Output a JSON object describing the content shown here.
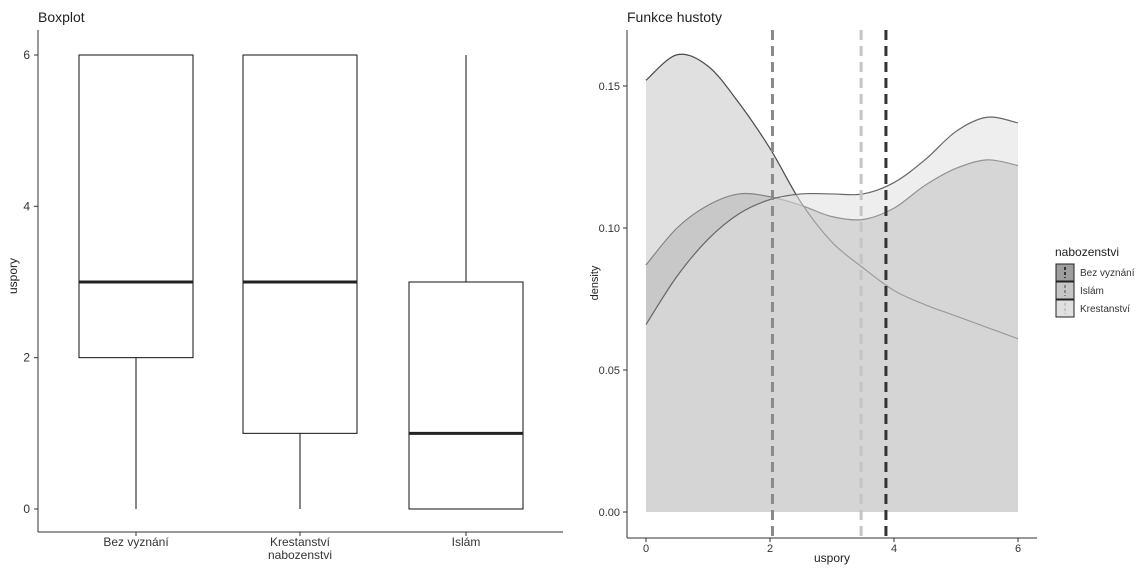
{
  "chart_data": [
    {
      "type": "box",
      "title": "Boxplot",
      "ylabel": "uspory",
      "xlabel": "",
      "categories": [
        "Bez vyznání",
        "Krestanství\nnabozenstvi",
        "Islám"
      ],
      "ylim": [
        0,
        6
      ],
      "yticks": [
        0,
        2,
        4,
        6
      ],
      "boxes": [
        {
          "category": "Bez vyznání",
          "min": 0,
          "q1": 2,
          "median": 3,
          "q3": 6,
          "max": 6
        },
        {
          "category": "Krestanství nabozenstvi",
          "min": 0,
          "q1": 1,
          "median": 3,
          "q3": 6,
          "max": 6
        },
        {
          "category": "Islám",
          "min": 0,
          "q1": 0,
          "median": 1,
          "q3": 3,
          "max": 6
        }
      ],
      "grid": false
    },
    {
      "type": "area",
      "title": "Funkce hustoty",
      "xlabel": "uspory",
      "ylabel": "density",
      "xlim": [
        0,
        6
      ],
      "ylim": [
        0,
        0.165
      ],
      "xticks": [
        0,
        2,
        4,
        6
      ],
      "yticks": [
        0.0,
        0.05,
        0.1,
        0.15
      ],
      "ytick_labels": [
        "0.00",
        "0.05",
        "0.10",
        "0.15"
      ],
      "legend_title": "nabozenstvi",
      "legend_position": "right",
      "series": [
        {
          "name": "Bez vyznání",
          "color": "#9e9e9e",
          "line_color": "#333333",
          "x": [
            0,
            0.5,
            1,
            1.5,
            2,
            2.5,
            3,
            3.5,
            4,
            4.5,
            5,
            5.5,
            6
          ],
          "y": [
            0.087,
            0.1,
            0.108,
            0.112,
            0.111,
            0.108,
            0.104,
            0.103,
            0.107,
            0.115,
            0.121,
            0.124,
            0.122
          ],
          "mean": 3.87
        },
        {
          "name": "Islám",
          "color": "#c6c6c6",
          "line_color": "#4a4a4a",
          "x": [
            0,
            0.5,
            1,
            1.5,
            2,
            2.5,
            3,
            3.5,
            4,
            4.5,
            5,
            5.5,
            6
          ],
          "y": [
            0.152,
            0.161,
            0.157,
            0.144,
            0.128,
            0.109,
            0.095,
            0.086,
            0.078,
            0.073,
            0.069,
            0.065,
            0.061
          ],
          "mean": 2.04
        },
        {
          "name": "Krestanství",
          "color": "#e0e0e0",
          "line_color": "#666666",
          "x": [
            0,
            0.5,
            1,
            1.5,
            2,
            2.5,
            3,
            3.5,
            4,
            4.5,
            5,
            5.5,
            6
          ],
          "y": [
            0.066,
            0.083,
            0.096,
            0.105,
            0.11,
            0.112,
            0.112,
            0.112,
            0.116,
            0.124,
            0.134,
            0.139,
            0.137
          ],
          "mean": 3.47
        }
      ],
      "mean_lines_colors": {
        "Bez vyznání": "#333333",
        "Islám": "#8a8a8a",
        "Krestanství": "#c4c4c4"
      },
      "grid": false
    }
  ]
}
